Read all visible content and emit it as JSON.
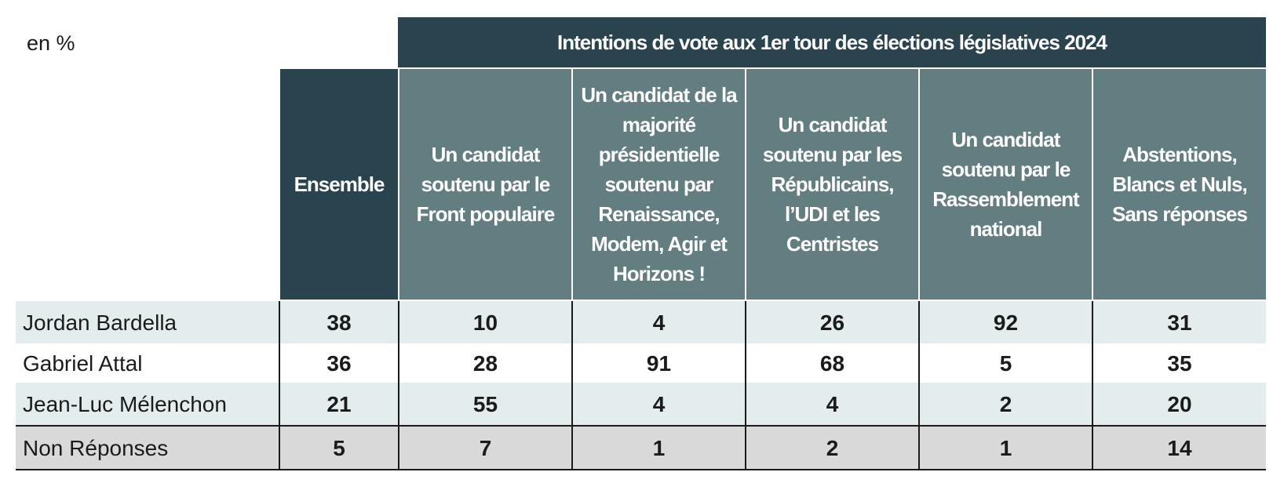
{
  "unit_label": "en %",
  "super_header": "Intentions de vote aux 1er tour des élections législatives 2024",
  "columns": [
    "Ensemble",
    "Un candidat soutenu par le Front populaire",
    "Un candidat de la majorité présidentielle soutenu par Renaissance, Modem, Agir et Horizons !",
    "Un candidat soutenu par les Républicains, l’UDI et les Centristes",
    "Un candidat soutenu par le Rassemblement national",
    "Abstentions, Blancs et Nuls, Sans réponses"
  ],
  "rows": [
    {
      "label": "Jordan Bardella",
      "values": [
        "38",
        "10",
        "4",
        "26",
        "92",
        "31"
      ]
    },
    {
      "label": "Gabriel Attal",
      "values": [
        "36",
        "28",
        "91",
        "68",
        "5",
        "35"
      ]
    },
    {
      "label": "Jean-Luc Mélenchon",
      "values": [
        "21",
        "55",
        "4",
        "4",
        "2",
        "20"
      ]
    },
    {
      "label": "Non Réponses",
      "values": [
        "5",
        "7",
        "1",
        "2",
        "1",
        "14"
      ]
    }
  ],
  "colors": {
    "dark_header": "#29444f",
    "sub_header": "#627e80",
    "row_light": "#e3edee",
    "row_white": "#ffffff",
    "row_grey": "#d9d9d9"
  },
  "chart_data": {
    "type": "table",
    "title": "Intentions de vote aux 1er tour des élections législatives 2024",
    "unit": "en %",
    "columns": [
      "Ensemble",
      "Un candidat soutenu par le Front populaire",
      "Un candidat de la majorité présidentielle soutenu par Renaissance, Modem, Agir et Horizons !",
      "Un candidat soutenu par les Républicains, l’UDI et les Centristes",
      "Un candidat soutenu par le Rassemblement national",
      "Abstentions, Blancs et Nuls, Sans réponses"
    ],
    "rows": [
      "Jordan Bardella",
      "Gabriel Attal",
      "Jean-Luc Mélenchon",
      "Non Réponses"
    ],
    "values": [
      [
        38,
        10,
        4,
        26,
        92,
        31
      ],
      [
        36,
        28,
        91,
        68,
        5,
        35
      ],
      [
        21,
        55,
        4,
        4,
        2,
        20
      ],
      [
        5,
        7,
        1,
        2,
        1,
        14
      ]
    ]
  }
}
